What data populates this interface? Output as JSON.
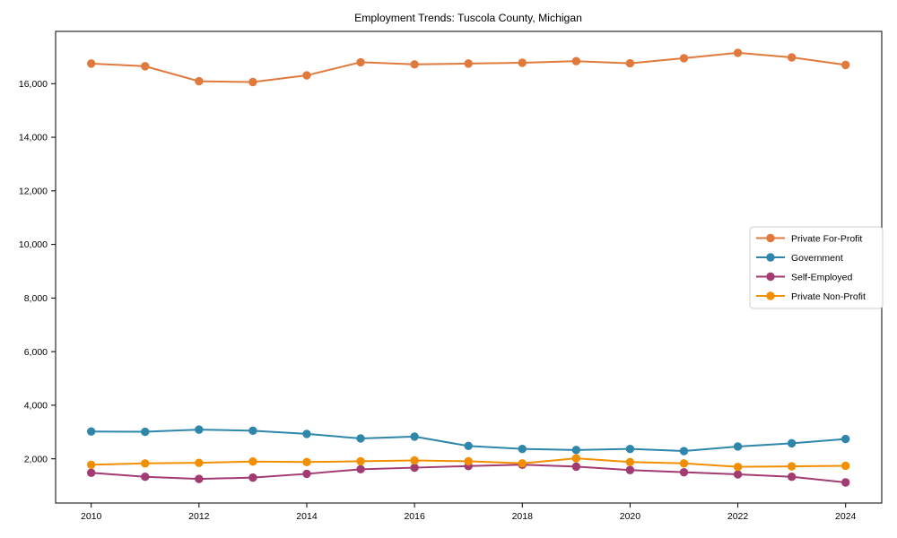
{
  "chart_data": {
    "type": "line",
    "title": "Employment Trends: Tuscola County, Michigan",
    "xlabel": "",
    "ylabel": "",
    "grid": false,
    "legend_position": "center right",
    "x": [
      2010,
      2011,
      2012,
      2013,
      2014,
      2015,
      2016,
      2017,
      2018,
      2019,
      2020,
      2021,
      2022,
      2023,
      2024
    ],
    "xticks": [
      2010,
      2012,
      2014,
      2016,
      2018,
      2020,
      2022,
      2024
    ],
    "yticks": [
      2000,
      4000,
      6000,
      8000,
      10000,
      12000,
      14000,
      16000
    ],
    "ytick_labels": [
      "2,000",
      "4,000",
      "6,000",
      "8,000",
      "10,000",
      "12,000",
      "14,000",
      "16,000"
    ],
    "xlim": [
      2009.3,
      2024.7
    ],
    "ylim": [
      385,
      17950
    ],
    "series": [
      {
        "name": "Private For-Profit",
        "color": "#E0793C",
        "values": [
          16750,
          16650,
          16090,
          16060,
          16310,
          16800,
          16720,
          16750,
          16780,
          16840,
          16760,
          16950,
          17150,
          16980,
          16700
        ]
      },
      {
        "name": "Government",
        "color": "#2E86AB",
        "values": [
          3020,
          3010,
          3090,
          3050,
          2930,
          2760,
          2830,
          2480,
          2370,
          2330,
          2370,
          2290,
          2460,
          2580,
          2740
        ]
      },
      {
        "name": "Self-Employed",
        "color": "#A23B72",
        "values": [
          1480,
          1330,
          1250,
          1300,
          1440,
          1610,
          1670,
          1730,
          1780,
          1710,
          1580,
          1500,
          1420,
          1330,
          1120
        ]
      },
      {
        "name": "Private Non-Profit",
        "color": "#F18F01",
        "values": [
          1780,
          1830,
          1850,
          1900,
          1880,
          1910,
          1940,
          1910,
          1830,
          2020,
          1880,
          1830,
          1700,
          1720,
          1740
        ]
      }
    ],
    "axis_color": "#000000",
    "legend_border_color": "#cccccc",
    "legend_bg_color": "#ffffff"
  }
}
